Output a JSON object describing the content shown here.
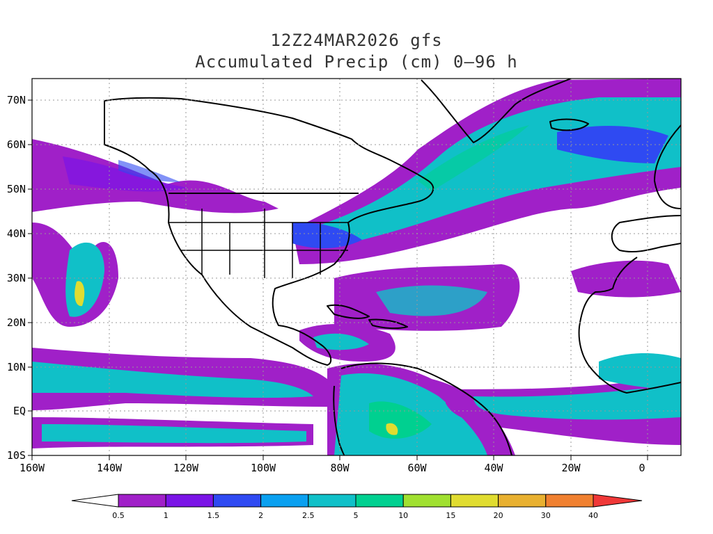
{
  "title": {
    "line1": "12Z24MAR2026 gfs",
    "line2": "Accumulated Precip (cm) 0–96 h"
  },
  "axes": {
    "lon_labels": [
      "160W",
      "140W",
      "120W",
      "100W",
      "80W",
      "60W",
      "40W",
      "20W",
      "0"
    ],
    "lat_labels": [
      "70N",
      "60N",
      "50N",
      "40N",
      "30N",
      "20N",
      "10N",
      "EQ",
      "10S"
    ]
  },
  "colorbar": {
    "labels": [
      "0.5",
      "1",
      "1.5",
      "2",
      "2.5",
      "5",
      "10",
      "15",
      "20",
      "30",
      "40"
    ],
    "colors": [
      "#a020c8",
      "#7a14e6",
      "#2f4af2",
      "#0aa0f0",
      "#10c0c8",
      "#00d090",
      "#a0e030",
      "#e0dc30",
      "#e8b030",
      "#f08030",
      "#f03838"
    ],
    "low_color": "#ffffff",
    "high_color": "#f03838"
  }
}
